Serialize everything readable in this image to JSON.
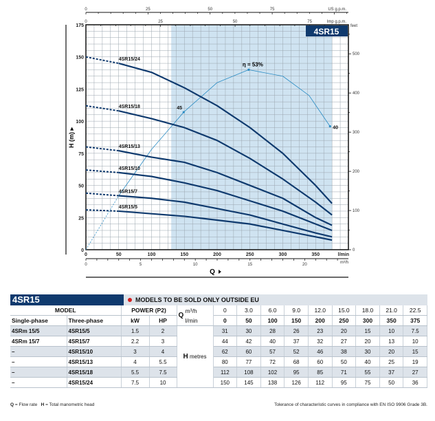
{
  "chart_data": {
    "type": "line",
    "badge": "4SR15",
    "x": [
      0,
      50,
      100,
      150,
      200,
      250,
      300,
      350,
      375
    ],
    "xlabel": "Q",
    "ylabel": "H (m)",
    "xlim": [
      0,
      400
    ],
    "ylim": [
      0,
      175
    ],
    "grid": true,
    "x_axis_unit": "l/min",
    "x_ticks": [
      0,
      50,
      100,
      150,
      200,
      250,
      300,
      350
    ],
    "y_ticks": [
      0,
      25,
      50,
      75,
      100,
      125,
      150,
      175
    ],
    "secondary_axes": {
      "us_gpm": {
        "label": "US g.p.m.",
        "ticks": [
          0,
          25,
          50,
          75
        ]
      },
      "imp_gpm": {
        "label": "Imp g.p.m.",
        "ticks": [
          0,
          25,
          50,
          75
        ]
      },
      "m3h": {
        "label": "m³/h",
        "ticks": [
          0,
          5,
          10,
          15,
          20
        ]
      },
      "feet": {
        "label": "feet",
        "ticks": [
          0,
          100,
          200,
          300,
          400,
          500
        ]
      }
    },
    "recommended_range_lmin": [
      130,
      375
    ],
    "series": [
      {
        "name": "4SR15/5",
        "values": [
          31,
          30,
          28,
          26,
          23,
          20,
          15,
          10,
          7.5
        ]
      },
      {
        "name": "4SR15/7",
        "values": [
          44,
          42,
          40,
          37,
          32,
          27,
          20,
          13,
          10
        ]
      },
      {
        "name": "4SR15/10",
        "values": [
          62,
          60,
          57,
          52,
          46,
          38,
          30,
          20,
          15
        ]
      },
      {
        "name": "4SR15/13",
        "values": [
          80,
          77,
          72,
          68,
          60,
          50,
          40,
          25,
          19
        ]
      },
      {
        "name": "4SR15/18",
        "values": [
          112,
          108,
          102,
          95,
          85,
          71,
          55,
          37,
          27
        ]
      },
      {
        "name": "4SR15/24",
        "values": [
          150,
          145,
          138,
          126,
          112,
          95,
          75,
          50,
          36
        ]
      }
    ],
    "efficiency_curve": {
      "points": [
        [
          0,
          0
        ],
        [
          50,
          42
        ],
        [
          100,
          78
        ],
        [
          149,
          107
        ],
        [
          200,
          130
        ],
        [
          248,
          140
        ],
        [
          300,
          135
        ],
        [
          340,
          120
        ],
        [
          372,
          96
        ]
      ],
      "labels": [
        {
          "text": "45",
          "at": [
            149,
            107
          ]
        },
        {
          "text": "η = 53%",
          "at": [
            248,
            140
          ]
        },
        {
          "text": "40",
          "at": [
            372,
            96
          ]
        }
      ]
    },
    "colors": {
      "curve": "#0f3a6e",
      "efficiency": "#2a8cc4",
      "range": "#cfe3f1",
      "badge": "#0f3a6e",
      "dot": "#d32020"
    }
  },
  "table": {
    "title": "4SR15",
    "note": "MODELS TO BE SOLD ONLY OUTSIDE EU",
    "model": "MODEL",
    "single": "Single-phase",
    "three": "Three-phase",
    "power": "POWER (P2)",
    "kw": "kW",
    "hp": "HP",
    "q": "Q",
    "m3h": "m³/h",
    "lmin": "l/min",
    "h": "H",
    "metres": "metres",
    "q_m3h": [
      "0",
      "3.0",
      "6.0",
      "9.0",
      "12.0",
      "15.0",
      "18.0",
      "21.0",
      "22.5"
    ],
    "q_lmin": [
      "0",
      "50",
      "100",
      "150",
      "200",
      "250",
      "300",
      "350",
      "375"
    ],
    "rows": [
      {
        "single": "4SRm 15/5",
        "three": "4SR15/5",
        "kw": "1.5",
        "hp": "2",
        "h": [
          "31",
          "30",
          "28",
          "26",
          "23",
          "20",
          "15",
          "10",
          "7.5"
        ]
      },
      {
        "single": "4SRm 15/7",
        "three": "4SR15/7",
        "kw": "2.2",
        "hp": "3",
        "h": [
          "44",
          "42",
          "40",
          "37",
          "32",
          "27",
          "20",
          "13",
          "10"
        ]
      },
      {
        "single": "–",
        "three": "4SR15/10",
        "kw": "3",
        "hp": "4",
        "h": [
          "62",
          "60",
          "57",
          "52",
          "46",
          "38",
          "30",
          "20",
          "15"
        ]
      },
      {
        "single": "–",
        "three": "4SR15/13",
        "kw": "4",
        "hp": "5.5",
        "h": [
          "80",
          "77",
          "72",
          "68",
          "60",
          "50",
          "40",
          "25",
          "19"
        ]
      },
      {
        "single": "–",
        "three": "4SR15/18",
        "kw": "5.5",
        "hp": "7.5",
        "h": [
          "112",
          "108",
          "102",
          "95",
          "85",
          "71",
          "55",
          "37",
          "27"
        ]
      },
      {
        "single": "–",
        "three": "4SR15/24",
        "kw": "7.5",
        "hp": "10",
        "h": [
          "150",
          "145",
          "138",
          "126",
          "112",
          "95",
          "75",
          "50",
          "36"
        ]
      }
    ]
  },
  "footer": {
    "legend_q": "Q",
    "legend_q_text": " = Flow rate",
    "legend_h": "H",
    "legend_h_text": " = Total manometric head",
    "tolerance": "Tolerance of characteristic curves in compliance with EN ISO 9906 Grade 3B."
  }
}
